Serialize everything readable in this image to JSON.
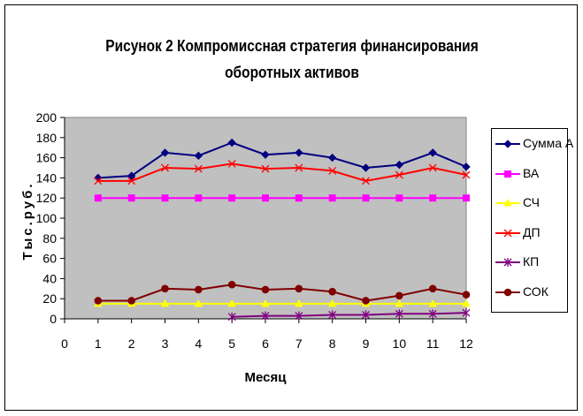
{
  "title_line1": "Рисунок 2  Компромиссная стратегия финансирования",
  "title_line2": "оборотных активов",
  "chart_data": {
    "type": "line",
    "title": "Рисунок 2  Компромиссная стратегия финансирования оборотных активов",
    "xlabel": "Месяц",
    "ylabel": "Тыс.руб.",
    "x_ticks": [
      0,
      1,
      2,
      3,
      4,
      5,
      6,
      7,
      8,
      9,
      10,
      11,
      12
    ],
    "y_ticks": [
      0,
      20,
      40,
      60,
      80,
      100,
      120,
      140,
      160,
      180,
      200
    ],
    "xlim": [
      0,
      12
    ],
    "ylim": [
      0,
      200
    ],
    "plot_background": "#c0c0c0",
    "grid": false,
    "legend_position": "right",
    "series": [
      {
        "name": "Сумма А",
        "color": "#000080",
        "marker": "diamond",
        "x": [
          1,
          2,
          3,
          4,
          5,
          6,
          7,
          8,
          9,
          10,
          11,
          12
        ],
        "values": [
          140,
          142,
          165,
          162,
          175,
          163,
          165,
          160,
          150,
          153,
          165,
          151
        ]
      },
      {
        "name": "ВА",
        "color": "#ff00ff",
        "marker": "square",
        "x": [
          1,
          2,
          3,
          4,
          5,
          6,
          7,
          8,
          9,
          10,
          11,
          12
        ],
        "values": [
          120,
          120,
          120,
          120,
          120,
          120,
          120,
          120,
          120,
          120,
          120,
          120
        ]
      },
      {
        "name": "СЧ",
        "color": "#ffff00",
        "marker": "triangle",
        "x": [
          1,
          2,
          3,
          4,
          5,
          6,
          7,
          8,
          9,
          10,
          11,
          12
        ],
        "values": [
          15,
          15,
          15,
          15,
          15,
          15,
          15,
          15,
          15,
          15,
          15,
          15
        ]
      },
      {
        "name": "ДП",
        "color": "#ff0000",
        "marker": "x",
        "x": [
          1,
          2,
          3,
          4,
          5,
          6,
          7,
          8,
          9,
          10,
          11,
          12
        ],
        "values": [
          137,
          137,
          150,
          149,
          154,
          149,
          150,
          147,
          137,
          143,
          150,
          143
        ]
      },
      {
        "name": "КП",
        "color": "#800080",
        "marker": "star",
        "x": [
          5,
          6,
          7,
          8,
          9,
          10,
          11,
          12
        ],
        "values": [
          2,
          3,
          3,
          4,
          4,
          5,
          5,
          6
        ]
      },
      {
        "name": "СОК",
        "color": "#800000",
        "marker": "circle",
        "x": [
          1,
          2,
          3,
          4,
          5,
          6,
          7,
          8,
          9,
          10,
          11,
          12
        ],
        "values": [
          18,
          18,
          30,
          29,
          34,
          29,
          30,
          27,
          18,
          23,
          30,
          24
        ]
      }
    ]
  }
}
